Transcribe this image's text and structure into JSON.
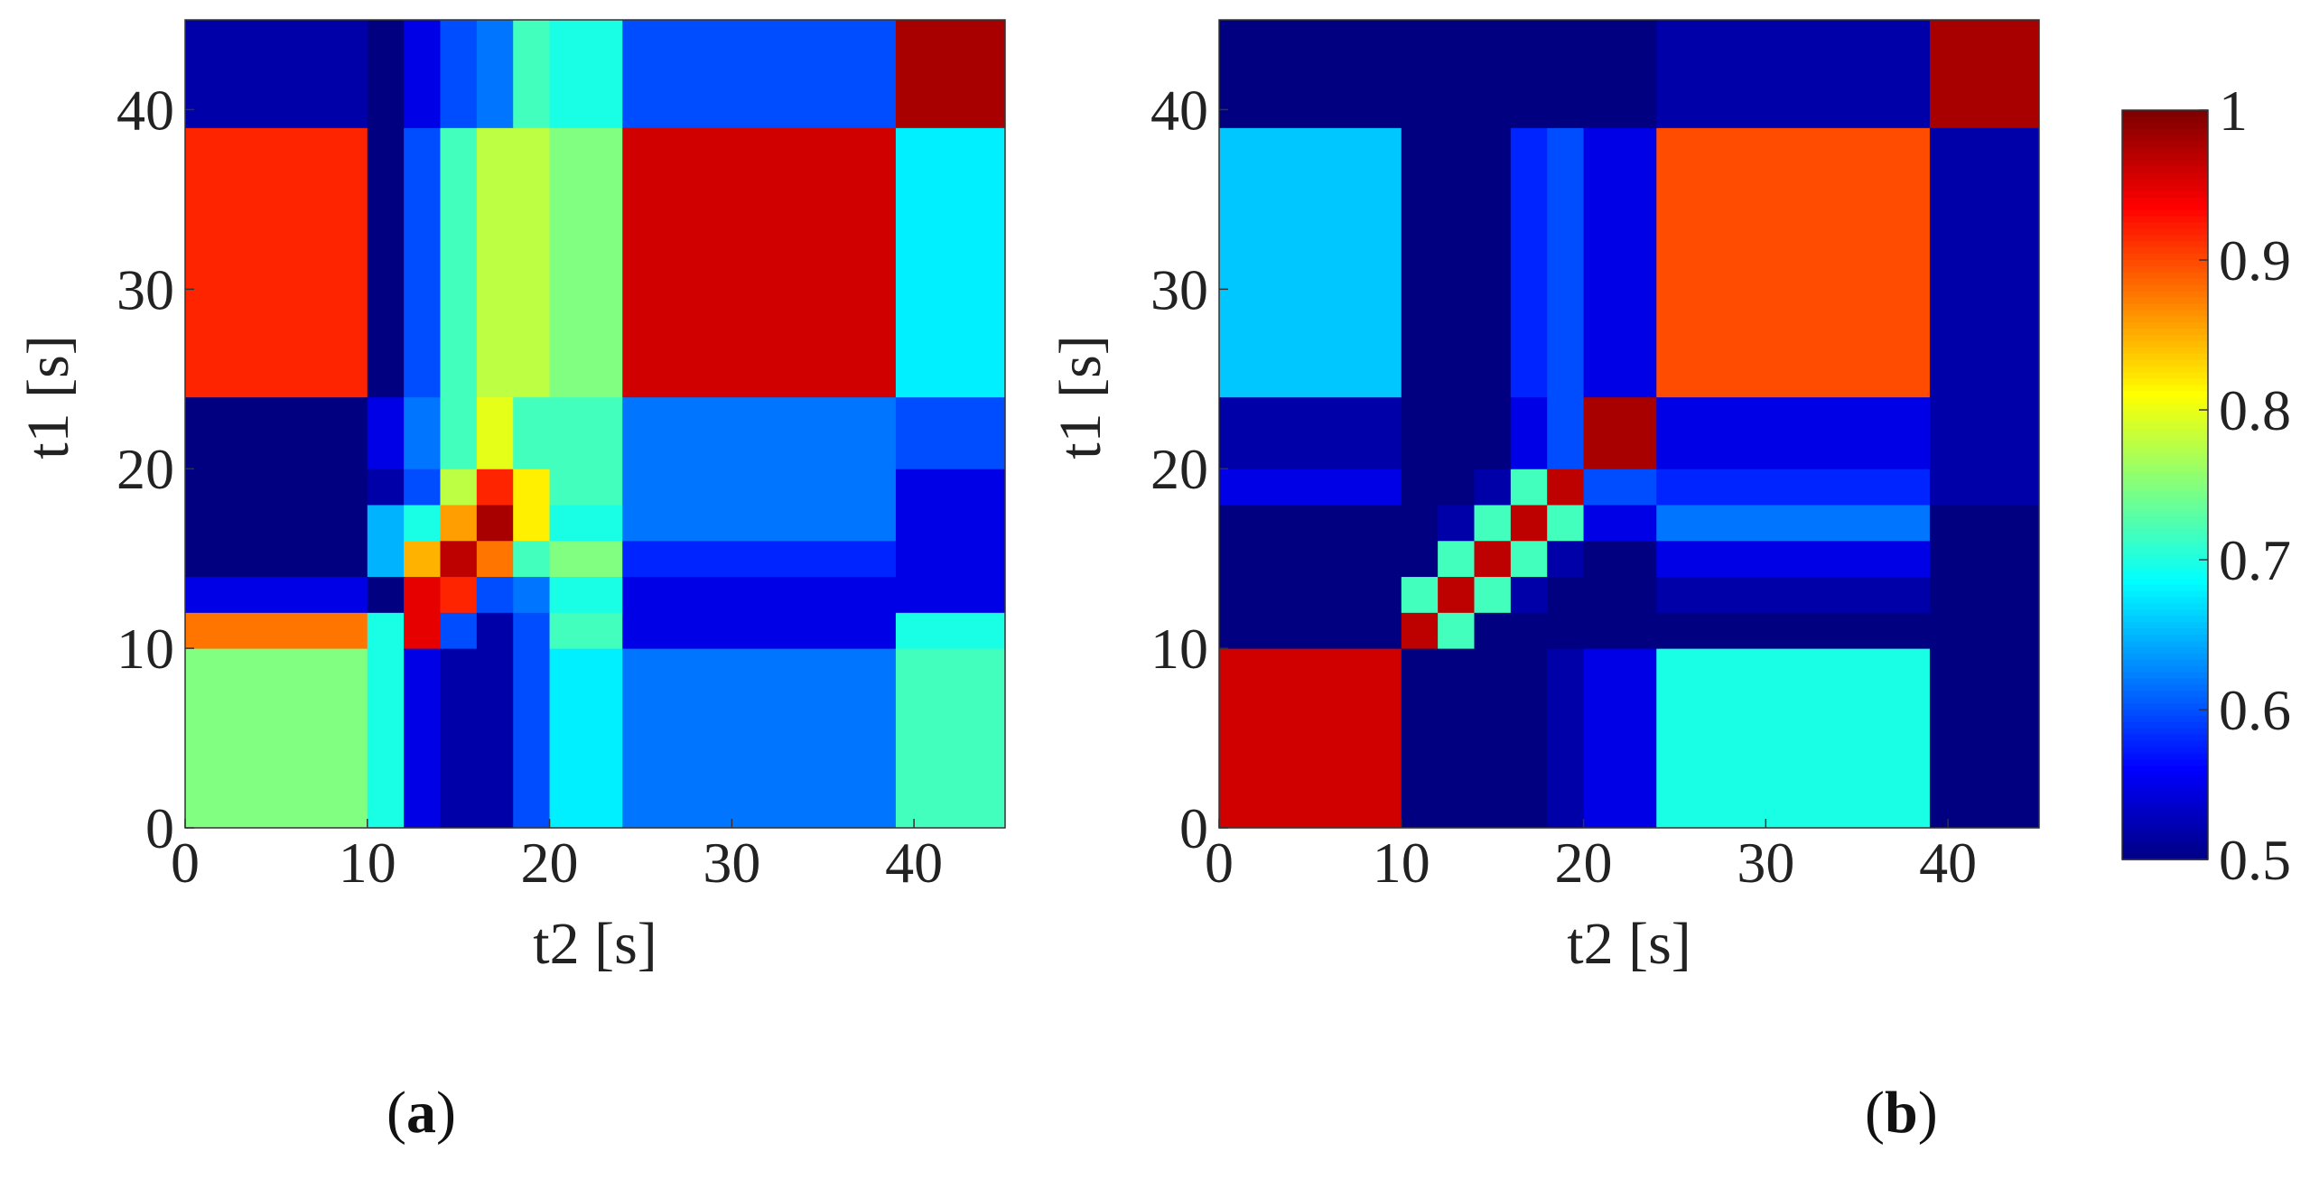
{
  "chart_data": [
    {
      "type": "heatmap",
      "panel": "a",
      "xlabel": "t2 [s]",
      "ylabel": "t1 [s]",
      "xlim": [
        0,
        45
      ],
      "ylim": [
        0,
        45
      ],
      "x_ticks": [
        "0",
        "10",
        "20",
        "30",
        "40"
      ],
      "y_ticks": [
        "0",
        "10",
        "20",
        "30",
        "40"
      ],
      "segment_bounds": [
        0,
        10,
        12,
        14,
        16,
        18,
        20,
        24,
        39,
        45
      ],
      "value_matrix_rows_bottom_to_top": [
        [
          0.75,
          0.7,
          0.55,
          0.52,
          0.52,
          0.6,
          0.68,
          0.62,
          0.72
        ],
        [
          0.88,
          0.7,
          0.95,
          0.6,
          0.52,
          0.6,
          0.72,
          0.55,
          0.7
        ],
        [
          0.55,
          0.5,
          0.95,
          0.92,
          0.6,
          0.62,
          0.7,
          0.55,
          0.55
        ],
        [
          0.5,
          0.65,
          0.85,
          0.97,
          0.88,
          0.72,
          0.75,
          0.58,
          0.55
        ],
        [
          0.5,
          0.65,
          0.7,
          0.86,
          0.98,
          0.82,
          0.7,
          0.62,
          0.55
        ],
        [
          0.5,
          0.52,
          0.6,
          0.78,
          0.92,
          0.82,
          0.72,
          0.62,
          0.55
        ],
        [
          0.5,
          0.55,
          0.62,
          0.72,
          0.8,
          0.72,
          0.72,
          0.62,
          0.6
        ],
        [
          0.92,
          0.5,
          0.6,
          0.72,
          0.78,
          0.78,
          0.75,
          0.96,
          0.68
        ],
        [
          0.52,
          0.5,
          0.55,
          0.6,
          0.62,
          0.72,
          0.7,
          0.6,
          0.98
        ]
      ]
    },
    {
      "type": "heatmap",
      "panel": "b",
      "xlabel": "t2 [s]",
      "ylabel": "t1 [s]",
      "xlim": [
        0,
        45
      ],
      "ylim": [
        0,
        45
      ],
      "x_ticks": [
        "0",
        "10",
        "20",
        "30",
        "40"
      ],
      "y_ticks": [
        "0",
        "10",
        "20",
        "30",
        "40"
      ],
      "segment_bounds": [
        0,
        10,
        12,
        14,
        16,
        18,
        20,
        24,
        39,
        45
      ],
      "value_matrix_rows_bottom_to_top": [
        [
          0.96,
          0.5,
          0.5,
          0.5,
          0.5,
          0.52,
          0.55,
          0.7,
          0.5
        ],
        [
          0.5,
          0.97,
          0.72,
          0.5,
          0.5,
          0.5,
          0.5,
          0.5,
          0.5
        ],
        [
          0.5,
          0.72,
          0.97,
          0.72,
          0.52,
          0.5,
          0.5,
          0.52,
          0.5
        ],
        [
          0.5,
          0.5,
          0.72,
          0.97,
          0.72,
          0.52,
          0.5,
          0.55,
          0.5
        ],
        [
          0.5,
          0.5,
          0.52,
          0.72,
          0.97,
          0.72,
          0.55,
          0.62,
          0.5
        ],
        [
          0.55,
          0.5,
          0.5,
          0.52,
          0.72,
          0.97,
          0.6,
          0.58,
          0.52
        ],
        [
          0.52,
          0.5,
          0.5,
          0.5,
          0.55,
          0.6,
          0.98,
          0.55,
          0.52
        ],
        [
          0.66,
          0.5,
          0.5,
          0.5,
          0.58,
          0.6,
          0.55,
          0.9,
          0.52
        ],
        [
          0.5,
          0.5,
          0.5,
          0.5,
          0.5,
          0.5,
          0.5,
          0.52,
          0.98
        ]
      ]
    }
  ],
  "colorbar": {
    "ticks": [
      "1",
      "0.9",
      "0.8",
      "0.7",
      "0.6",
      "0.5"
    ],
    "min": 0.5,
    "max": 1.0
  },
  "panel_labels": [
    "a",
    "b"
  ]
}
